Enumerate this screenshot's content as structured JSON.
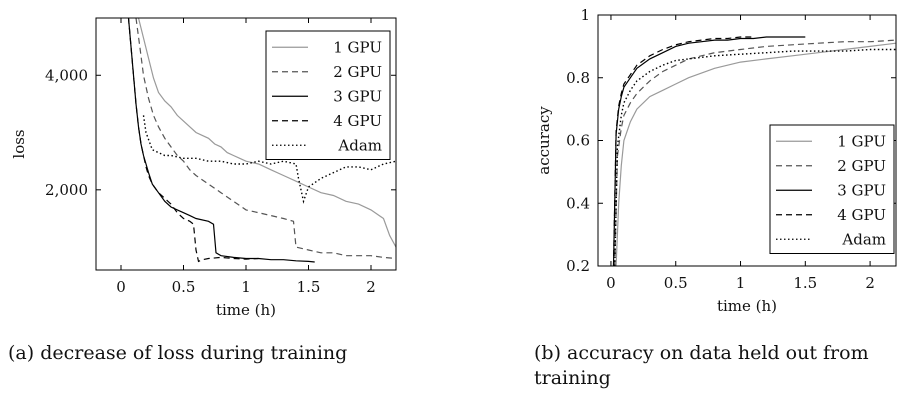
{
  "chart_data": [
    {
      "type": "line",
      "caption": "(a) decrease of loss during training",
      "xlabel": "time (h)",
      "ylabel": "loss",
      "xlim": [
        -0.2,
        2.2
      ],
      "ylim": [
        600,
        5000
      ],
      "xticks": [
        "0",
        "0.5",
        "1",
        "1.5",
        "2"
      ],
      "xtick_values": [
        0,
        0.5,
        1,
        1.5,
        2
      ],
      "yticks": [
        "2,000",
        "4,000"
      ],
      "ytick_values": [
        2000,
        4000
      ],
      "legend_position": "top-right",
      "series": [
        {
          "name": "1 GPU",
          "color": "#9a9a9a",
          "dash": "solid",
          "x": [
            0.14,
            0.18,
            0.22,
            0.26,
            0.3,
            0.35,
            0.4,
            0.45,
            0.5,
            0.55,
            0.6,
            0.65,
            0.7,
            0.75,
            0.8,
            0.85,
            0.9,
            0.95,
            1.0,
            1.1,
            1.2,
            1.3,
            1.4,
            1.5,
            1.6,
            1.7,
            1.8,
            1.9,
            2.0,
            2.1,
            2.15,
            2.2
          ],
          "y": [
            5000,
            4650,
            4300,
            3950,
            3700,
            3550,
            3450,
            3300,
            3200,
            3100,
            3000,
            2950,
            2900,
            2800,
            2750,
            2650,
            2600,
            2550,
            2500,
            2450,
            2350,
            2250,
            2150,
            2050,
            1950,
            1900,
            1800,
            1750,
            1650,
            1500,
            1200,
            1000
          ]
        },
        {
          "name": "2 GPU",
          "color": "#555555",
          "dash": "dashed",
          "x": [
            0.12,
            0.15,
            0.18,
            0.22,
            0.26,
            0.3,
            0.35,
            0.4,
            0.45,
            0.5,
            0.55,
            0.6,
            0.7,
            0.8,
            0.9,
            1.0,
            1.1,
            1.2,
            1.3,
            1.38,
            1.4,
            1.5,
            1.6,
            1.7,
            1.8,
            1.9,
            2.0,
            2.1,
            2.2
          ],
          "y": [
            5000,
            4500,
            4000,
            3600,
            3300,
            3100,
            2900,
            2750,
            2600,
            2500,
            2350,
            2250,
            2100,
            1950,
            1800,
            1650,
            1600,
            1550,
            1500,
            1450,
            1000,
            950,
            900,
            900,
            850,
            850,
            850,
            820,
            800
          ]
        },
        {
          "name": "3 GPU",
          "color": "#000000",
          "dash": "solid",
          "x": [
            0.06,
            0.08,
            0.1,
            0.12,
            0.14,
            0.16,
            0.18,
            0.2,
            0.22,
            0.25,
            0.3,
            0.35,
            0.4,
            0.45,
            0.5,
            0.55,
            0.6,
            0.7,
            0.74,
            0.76,
            0.8,
            0.9,
            1.0,
            1.1,
            1.2,
            1.3,
            1.4,
            1.5,
            1.55
          ],
          "y": [
            5000,
            4500,
            4000,
            3500,
            3100,
            2800,
            2600,
            2450,
            2300,
            2100,
            1950,
            1800,
            1700,
            1650,
            1600,
            1550,
            1500,
            1450,
            1400,
            900,
            850,
            820,
            800,
            800,
            780,
            780,
            760,
            750,
            740
          ]
        },
        {
          "name": "4 GPU",
          "color": "#000000",
          "dash": "dashed",
          "x": [
            0.06,
            0.08,
            0.1,
            0.12,
            0.14,
            0.16,
            0.18,
            0.2,
            0.22,
            0.25,
            0.3,
            0.35,
            0.4,
            0.45,
            0.5,
            0.55,
            0.58,
            0.6,
            0.62,
            0.65,
            0.7,
            0.8,
            0.9,
            1.0,
            1.1
          ],
          "y": [
            5000,
            4500,
            4000,
            3500,
            3100,
            2800,
            2600,
            2400,
            2250,
            2100,
            1950,
            1850,
            1750,
            1600,
            1500,
            1450,
            1400,
            950,
            750,
            780,
            800,
            820,
            800,
            790,
            800
          ]
        },
        {
          "name": "Adam",
          "color": "#000000",
          "dash": "dotted",
          "x": [
            0.18,
            0.2,
            0.25,
            0.3,
            0.35,
            0.4,
            0.5,
            0.6,
            0.7,
            0.8,
            0.9,
            1.0,
            1.1,
            1.2,
            1.3,
            1.4,
            1.42,
            1.46,
            1.5,
            1.6,
            1.7,
            1.8,
            1.9,
            2.0,
            2.1,
            2.2
          ],
          "y": [
            3300,
            3000,
            2700,
            2650,
            2600,
            2600,
            2550,
            2550,
            2500,
            2500,
            2450,
            2450,
            2500,
            2450,
            2500,
            2450,
            2200,
            1800,
            2050,
            2200,
            2300,
            2400,
            2400,
            2350,
            2450,
            2500
          ]
        }
      ]
    },
    {
      "type": "line",
      "caption": "(b) accuracy on data held out from training",
      "xlabel": "time (h)",
      "ylabel": "accuracy",
      "xlim": [
        -0.1,
        2.2
      ],
      "ylim": [
        0.2,
        1.0
      ],
      "xticks": [
        "0",
        "0.5",
        "1",
        "1.5",
        "2"
      ],
      "xtick_values": [
        0,
        0.5,
        1,
        1.5,
        2
      ],
      "yticks": [
        "0.2",
        "0.4",
        "0.6",
        "0.8",
        "1"
      ],
      "ytick_values": [
        0.2,
        0.4,
        0.6,
        0.8,
        1.0
      ],
      "legend_position": "bottom-right",
      "series": [
        {
          "name": "1 GPU",
          "color": "#9a9a9a",
          "dash": "solid",
          "x": [
            0.04,
            0.06,
            0.08,
            0.1,
            0.15,
            0.2,
            0.3,
            0.4,
            0.5,
            0.6,
            0.8,
            1.0,
            1.2,
            1.4,
            1.6,
            1.8,
            2.0,
            2.2
          ],
          "y": [
            0.2,
            0.4,
            0.52,
            0.6,
            0.66,
            0.7,
            0.74,
            0.76,
            0.78,
            0.8,
            0.83,
            0.85,
            0.86,
            0.87,
            0.88,
            0.89,
            0.9,
            0.91
          ]
        },
        {
          "name": "2 GPU",
          "color": "#555555",
          "dash": "dashed",
          "x": [
            0.03,
            0.05,
            0.08,
            0.1,
            0.15,
            0.2,
            0.3,
            0.4,
            0.5,
            0.6,
            0.8,
            1.0,
            1.2,
            1.4,
            1.6,
            1.8,
            2.0,
            2.2
          ],
          "y": [
            0.2,
            0.55,
            0.64,
            0.68,
            0.72,
            0.75,
            0.79,
            0.82,
            0.84,
            0.86,
            0.88,
            0.89,
            0.9,
            0.905,
            0.91,
            0.915,
            0.915,
            0.92
          ]
        },
        {
          "name": "3 GPU",
          "color": "#000000",
          "dash": "solid",
          "x": [
            0.02,
            0.04,
            0.06,
            0.08,
            0.1,
            0.15,
            0.2,
            0.3,
            0.4,
            0.5,
            0.6,
            0.7,
            0.8,
            0.9,
            1.0,
            1.1,
            1.2,
            1.3,
            1.4,
            1.5
          ],
          "y": [
            0.2,
            0.62,
            0.7,
            0.74,
            0.77,
            0.8,
            0.83,
            0.86,
            0.88,
            0.9,
            0.91,
            0.915,
            0.92,
            0.92,
            0.925,
            0.925,
            0.93,
            0.93,
            0.93,
            0.93
          ]
        },
        {
          "name": "4 GPU",
          "color": "#000000",
          "dash": "dashed",
          "x": [
            0.02,
            0.04,
            0.06,
            0.08,
            0.1,
            0.15,
            0.2,
            0.3,
            0.4,
            0.5,
            0.6,
            0.7,
            0.8,
            0.9,
            1.0,
            1.1
          ],
          "y": [
            0.2,
            0.63,
            0.71,
            0.75,
            0.78,
            0.81,
            0.84,
            0.87,
            0.89,
            0.905,
            0.915,
            0.92,
            0.925,
            0.925,
            0.93,
            0.93
          ]
        },
        {
          "name": "Adam",
          "color": "#000000",
          "dash": "dotted",
          "x": [
            0.03,
            0.05,
            0.08,
            0.1,
            0.15,
            0.2,
            0.3,
            0.4,
            0.5,
            0.6,
            0.8,
            1.0,
            1.2,
            1.4,
            1.6,
            1.8,
            2.0,
            2.2
          ],
          "y": [
            0.2,
            0.58,
            0.68,
            0.72,
            0.76,
            0.79,
            0.82,
            0.84,
            0.855,
            0.86,
            0.87,
            0.875,
            0.88,
            0.885,
            0.885,
            0.885,
            0.89,
            0.89
          ]
        }
      ]
    }
  ]
}
